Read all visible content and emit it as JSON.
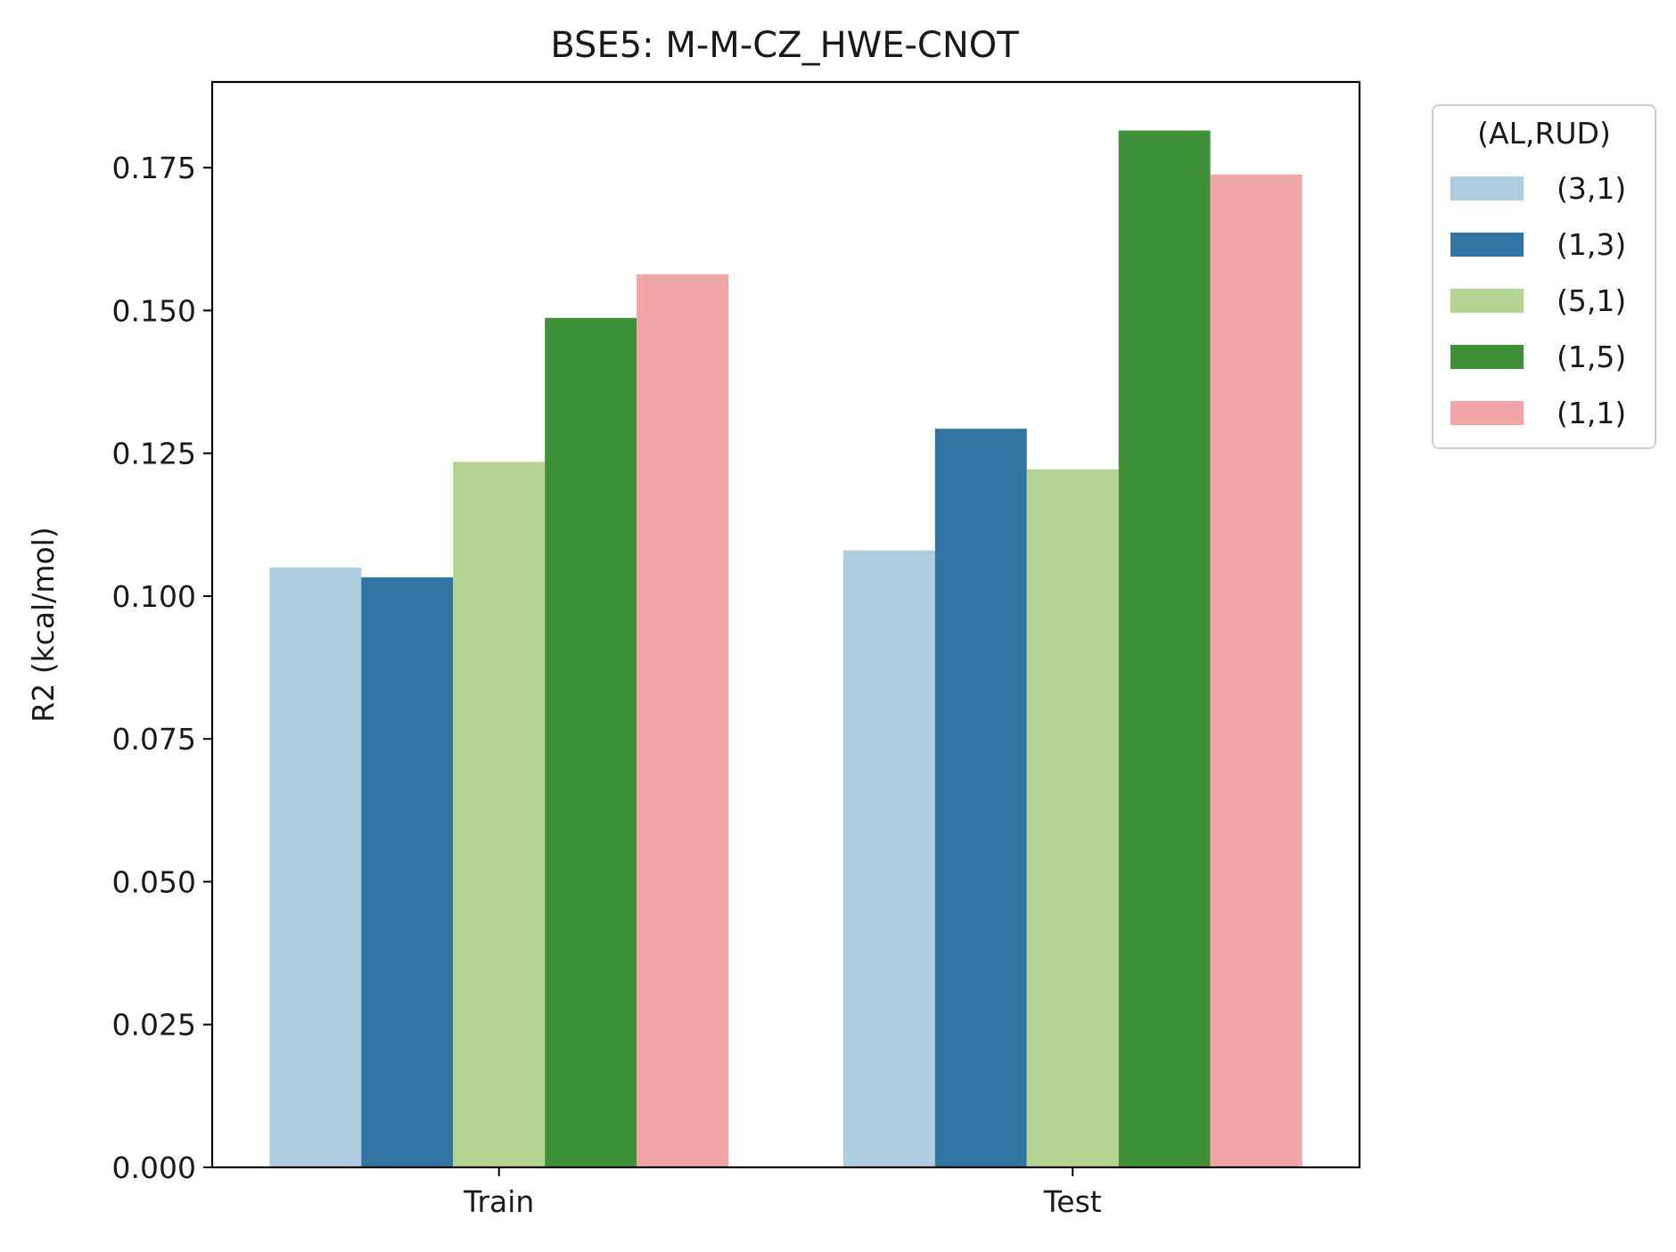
{
  "chart_data": {
    "type": "bar",
    "title": "BSE5: M-M-CZ_HWE-CNOT",
    "xlabel": "",
    "ylabel": "R2 (kcal/mol)",
    "ylim": [
      0,
      0.19
    ],
    "yticks": [
      0.0,
      0.025,
      0.05,
      0.075,
      0.1,
      0.125,
      0.15,
      0.175
    ],
    "ytick_labels": [
      "0.000",
      "0.025",
      "0.050",
      "0.075",
      "0.100",
      "0.125",
      "0.150",
      "0.175"
    ],
    "categories": [
      "Train",
      "Test"
    ],
    "legend": {
      "title": "(AL,RUD)",
      "location": "outside top-right"
    },
    "series": [
      {
        "name": "(3,1)",
        "color": "#aecde0",
        "values": [
          0.105,
          0.108
        ]
      },
      {
        "name": "(1,3)",
        "color": "#3274a1",
        "values": [
          0.1033,
          0.1293
        ]
      },
      {
        "name": "(5,1)",
        "color": "#b5d493",
        "values": [
          0.1235,
          0.1222
        ]
      },
      {
        "name": "(1,5)",
        "color": "#3f9139",
        "values": [
          0.1487,
          0.1815
        ]
      },
      {
        "name": "(1,1)",
        "color": "#f0a6a6",
        "values": [
          0.1563,
          0.1738
        ]
      }
    ]
  }
}
